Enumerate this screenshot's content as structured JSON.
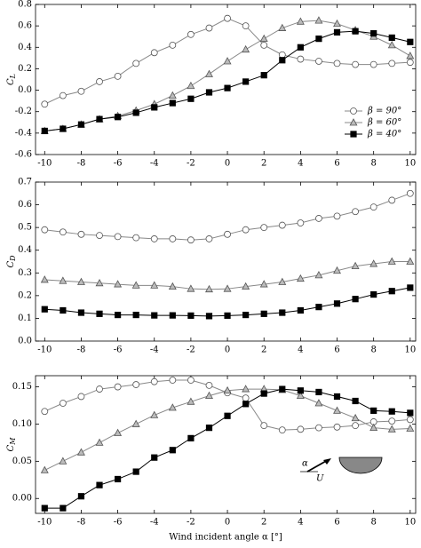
{
  "chart_data": [
    {
      "type": "line",
      "ylabel": "C",
      "ylabel_subscript": "L",
      "x": [
        -10,
        -9,
        -8,
        -7,
        -6,
        -5,
        -4,
        -3,
        -2,
        -1,
        0,
        1,
        2,
        3,
        4,
        5,
        6,
        7,
        8,
        9,
        10
      ],
      "xlim": [
        -10.5,
        10.3
      ],
      "xticks": [
        -10,
        -8,
        -6,
        -4,
        -2,
        0,
        2,
        4,
        6,
        8,
        10
      ],
      "ylim": [
        -0.6,
        0.8
      ],
      "yticks": [
        -0.6,
        -0.4,
        -0.2,
        {
          "value": 0,
          "label": "0.0"
        },
        0.2,
        0.4,
        0.6,
        0.8
      ],
      "legend": "lower right",
      "series": [
        {
          "name": "β = 90°",
          "marker": "circle",
          "color": "#ffffff",
          "values": [
            -0.13,
            -0.05,
            -0.01,
            0.08,
            0.13,
            0.25,
            0.35,
            0.42,
            0.52,
            0.58,
            0.67,
            0.6,
            0.42,
            0.33,
            0.29,
            0.27,
            0.25,
            0.24,
            0.24,
            0.25,
            0.26
          ]
        },
        {
          "name": "β = 60°",
          "marker": "triangle",
          "color": "#bbbbbb",
          "values": [
            -0.38,
            -0.36,
            -0.32,
            -0.27,
            -0.24,
            -0.19,
            -0.13,
            -0.05,
            0.04,
            0.15,
            0.27,
            0.38,
            0.48,
            0.58,
            0.64,
            0.65,
            0.62,
            0.56,
            0.5,
            0.42,
            0.32
          ]
        },
        {
          "name": "β = 40°",
          "marker": "square",
          "color": "#000000",
          "values": [
            -0.38,
            -0.36,
            -0.32,
            -0.27,
            -0.25,
            -0.21,
            -0.16,
            -0.12,
            -0.08,
            -0.02,
            0.02,
            0.08,
            0.14,
            0.28,
            0.4,
            0.48,
            0.54,
            0.55,
            0.53,
            0.49,
            0.45
          ]
        }
      ]
    },
    {
      "type": "line",
      "ylabel": "C",
      "ylabel_subscript": "D",
      "x": [
        -10,
        -9,
        -8,
        -7,
        -6,
        -5,
        -4,
        -3,
        -2,
        -1,
        0,
        1,
        2,
        3,
        4,
        5,
        6,
        7,
        8,
        9,
        10
      ],
      "xlim": [
        -10.5,
        10.3
      ],
      "xticks": [
        -10,
        -8,
        -6,
        -4,
        -2,
        0,
        2,
        4,
        6,
        8,
        10
      ],
      "ylim": [
        0,
        0.7
      ],
      "yticks": [
        {
          "value": 0,
          "label": "0.0"
        },
        0.1,
        0.2,
        0.3,
        0.4,
        0.5,
        0.6,
        0.7
      ],
      "series": [
        {
          "name": "β = 90°",
          "marker": "circle",
          "color": "#ffffff",
          "values": [
            0.49,
            0.48,
            0.47,
            0.465,
            0.46,
            0.455,
            0.45,
            0.45,
            0.445,
            0.45,
            0.47,
            0.49,
            0.5,
            0.51,
            0.52,
            0.54,
            0.55,
            0.57,
            0.59,
            0.62,
            0.65
          ]
        },
        {
          "name": "β = 60°",
          "marker": "triangle",
          "color": "#bbbbbb",
          "values": [
            0.27,
            0.265,
            0.26,
            0.255,
            0.25,
            0.245,
            0.245,
            0.24,
            0.23,
            0.228,
            0.23,
            0.24,
            0.25,
            0.26,
            0.275,
            0.29,
            0.31,
            0.33,
            0.34,
            0.35,
            0.35
          ]
        },
        {
          "name": "β = 40°",
          "marker": "square",
          "color": "#000000",
          "values": [
            0.14,
            0.135,
            0.125,
            0.12,
            0.115,
            0.115,
            0.113,
            0.113,
            0.112,
            0.11,
            0.112,
            0.115,
            0.12,
            0.125,
            0.135,
            0.15,
            0.165,
            0.185,
            0.205,
            0.22,
            0.235
          ]
        }
      ]
    },
    {
      "type": "line",
      "ylabel": "C",
      "ylabel_subscript": "M",
      "xlabel": "Wind incident angle α [°]",
      "x": [
        -10,
        -9,
        -8,
        -7,
        -6,
        -5,
        -4,
        -3,
        -2,
        -1,
        0,
        1,
        2,
        3,
        4,
        5,
        6,
        7,
        8,
        9,
        10
      ],
      "xlim": [
        -10.5,
        10.3
      ],
      "xticks": [
        -10,
        -8,
        -6,
        -4,
        -2,
        0,
        2,
        4,
        6,
        8,
        10
      ],
      "ylim": [
        -0.02,
        0.165
      ],
      "yticks": [
        {
          "value": 0,
          "label": "0.00"
        },
        {
          "value": 0.05,
          "label": "0.05"
        },
        {
          "value": 0.1,
          "label": "0.10"
        },
        {
          "value": 0.15,
          "label": "0.15"
        }
      ],
      "annotations": [
        "α",
        "U"
      ],
      "series": [
        {
          "name": "β = 90°",
          "marker": "circle",
          "color": "#ffffff",
          "values": [
            0.117,
            0.128,
            0.137,
            0.147,
            0.15,
            0.153,
            0.157,
            0.159,
            0.159,
            0.152,
            0.142,
            0.135,
            0.098,
            0.092,
            0.093,
            0.095,
            0.096,
            0.098,
            0.103,
            0.104,
            0.106
          ]
        },
        {
          "name": "β = 60°",
          "marker": "triangle",
          "color": "#bbbbbb",
          "values": [
            0.038,
            0.05,
            0.062,
            0.075,
            0.088,
            0.1,
            0.112,
            0.122,
            0.13,
            0.138,
            0.145,
            0.147,
            0.147,
            0.146,
            0.138,
            0.128,
            0.118,
            0.108,
            0.095,
            0.093,
            0.094
          ]
        },
        {
          "name": "β = 40°",
          "marker": "square",
          "color": "#000000",
          "values": [
            -0.013,
            -0.013,
            0.003,
            0.018,
            0.026,
            0.036,
            0.055,
            0.065,
            0.081,
            0.095,
            0.111,
            0.127,
            0.141,
            0.147,
            0.145,
            0.143,
            0.137,
            0.131,
            0.118,
            0.117,
            0.115
          ]
        }
      ]
    }
  ]
}
